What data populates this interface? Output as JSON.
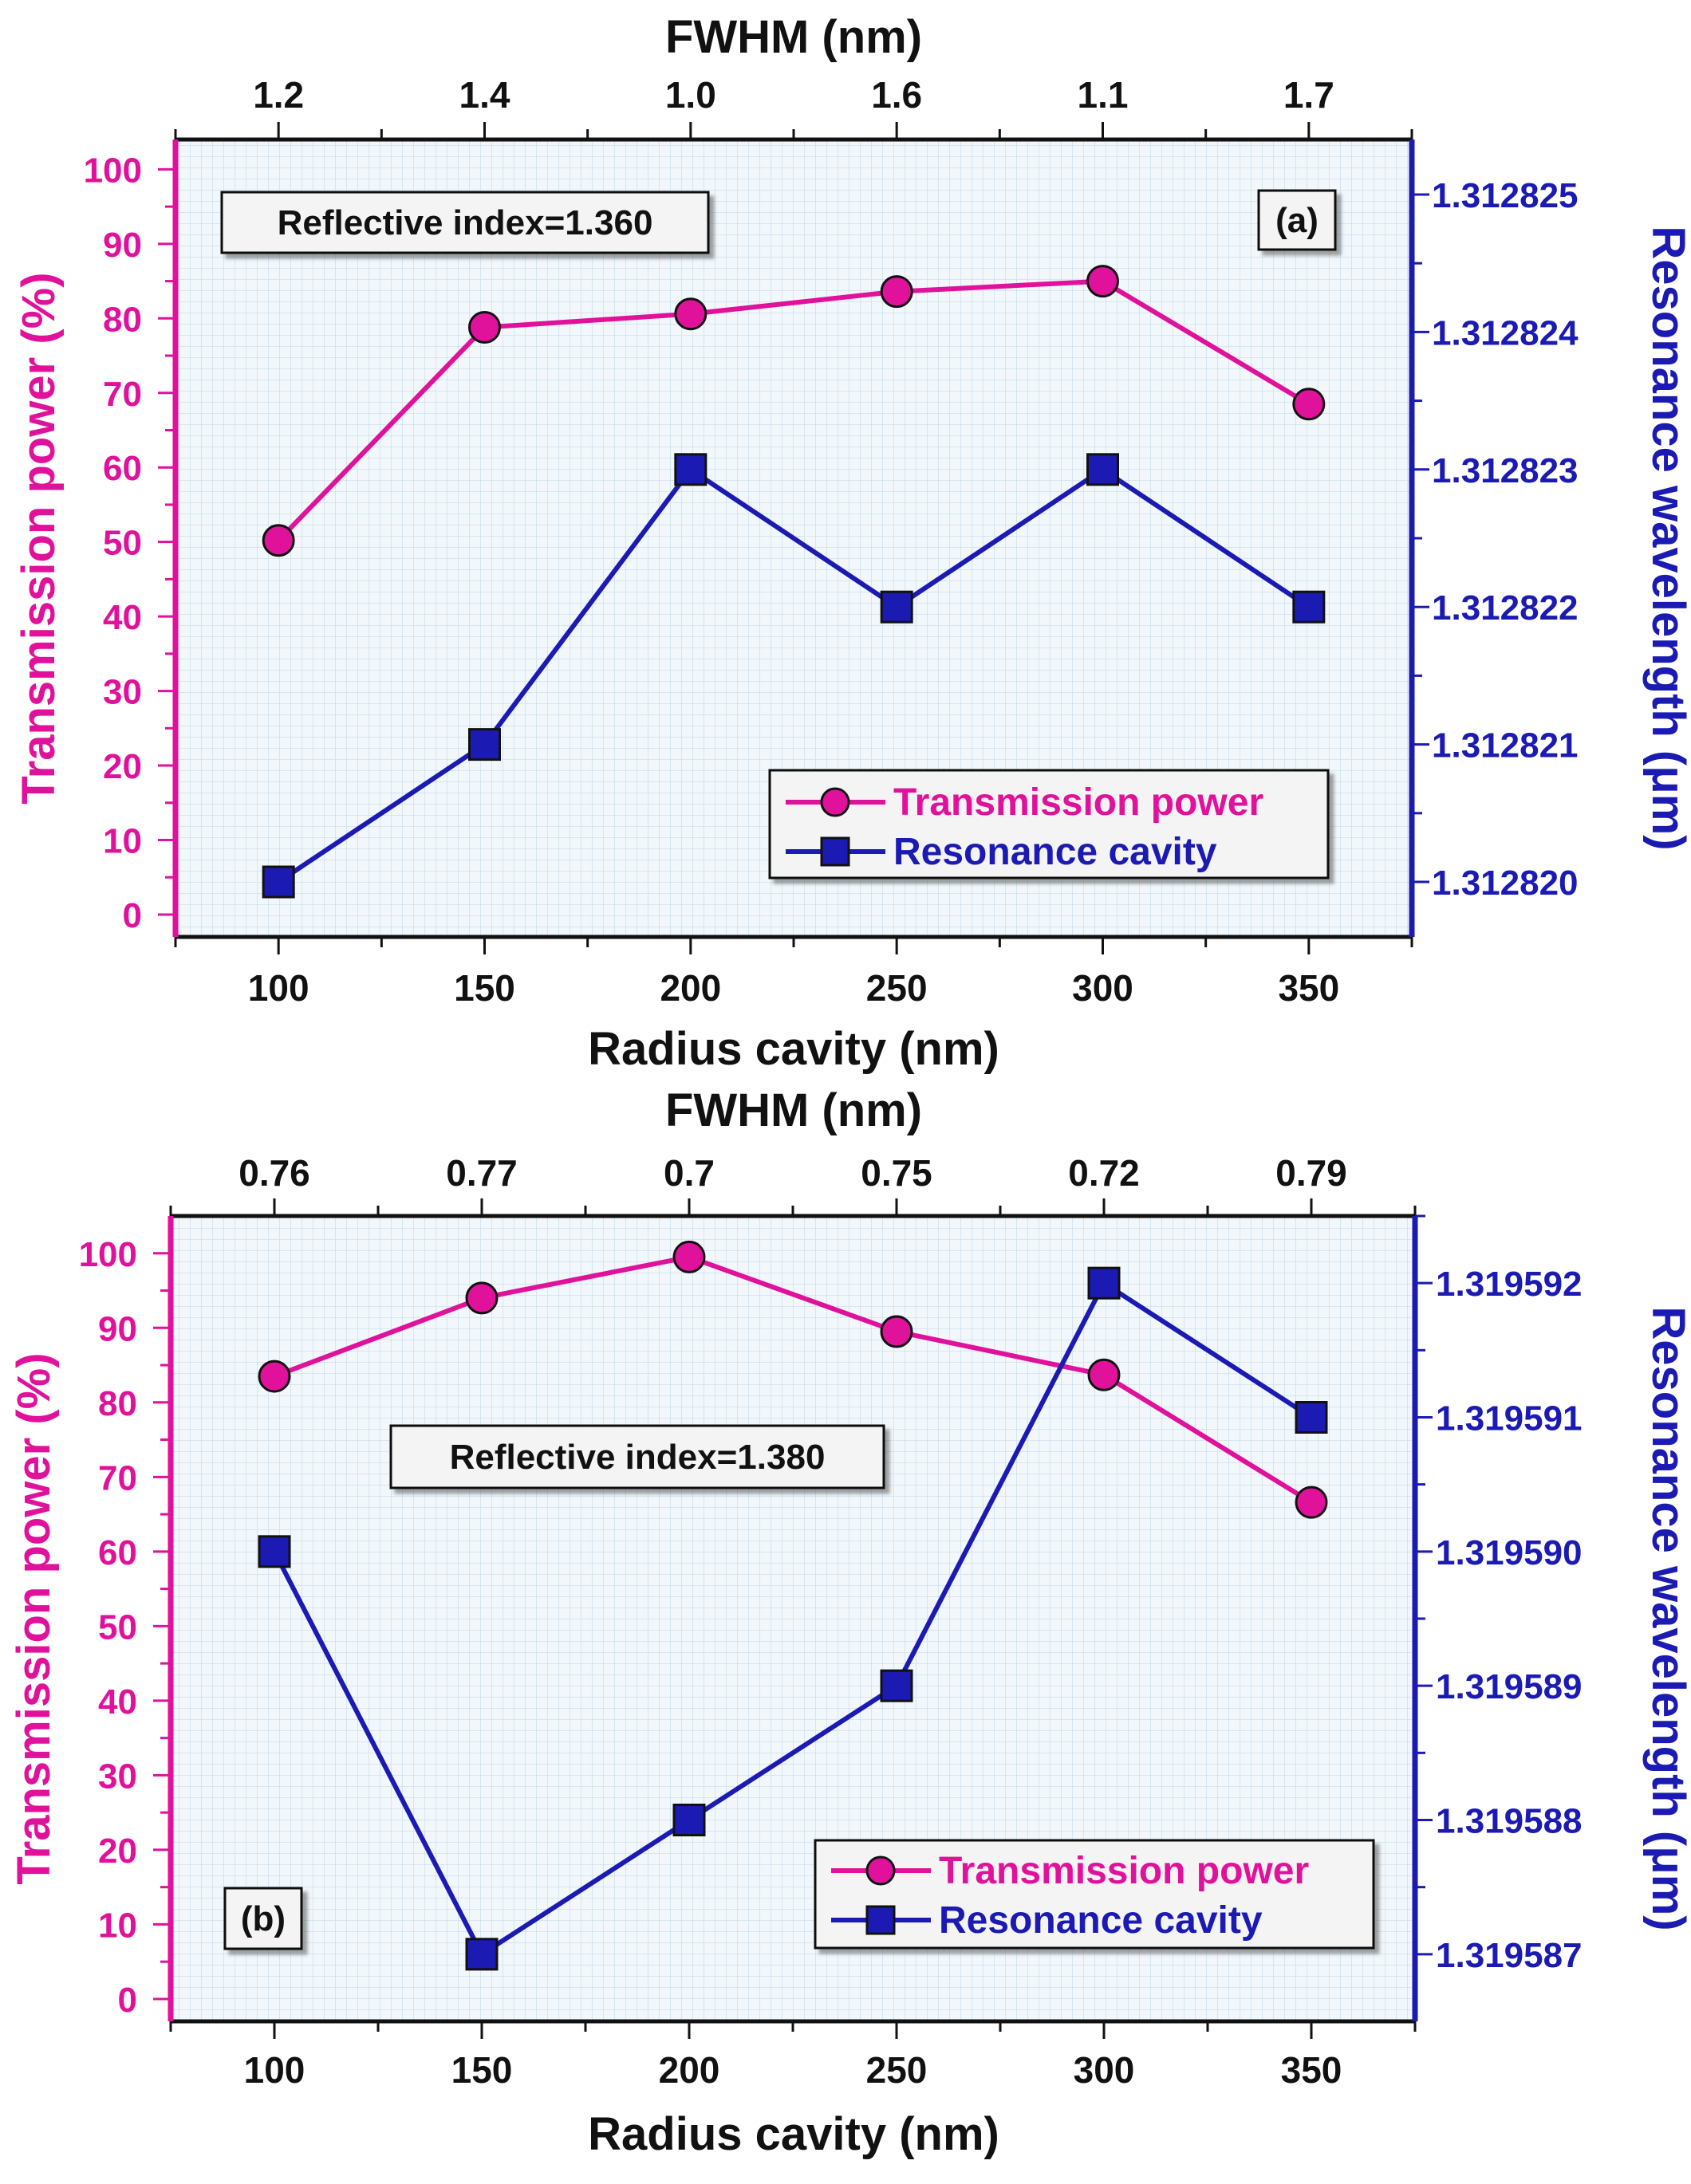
{
  "colors": {
    "transmission": "#e0119b",
    "resonance": "#1b1bb3",
    "plot_bg": "#f1f7fb",
    "grid": "#cfe1ee",
    "axis_bottom": "#111111"
  },
  "chart_data": [
    {
      "type": "line",
      "panel_label": "(a)",
      "annotation": "Reflective index=1.360",
      "xlabel": "Radius cavity (nm)",
      "top_xlabel": "FWHM (nm)",
      "ylabel_left": "Transmission power (%)",
      "ylabel_right": "Resonance wavelength (μm)",
      "xlim": [
        75,
        375
      ],
      "ylim_left": [
        -3,
        104
      ],
      "ylim_right": [
        1.3128196,
        1.3128254
      ],
      "x": [
        100,
        150,
        200,
        250,
        300,
        350
      ],
      "x_tick_labels": [
        "100",
        "150",
        "200",
        "250",
        "300",
        "350"
      ],
      "top_tick_labels": [
        "1.2",
        "1.4",
        "1.0",
        "1.6",
        "1.1",
        "1.7"
      ],
      "y_left_ticks": [
        0,
        10,
        20,
        30,
        40,
        50,
        60,
        70,
        80,
        90,
        100
      ],
      "y_left_tick_labels": [
        "0",
        "10",
        "20",
        "30",
        "40",
        "50",
        "60",
        "70",
        "80",
        "90",
        "100"
      ],
      "y_right_ticks": [
        1.31282,
        1.312821,
        1.312822,
        1.312823,
        1.312824,
        1.312825
      ],
      "y_right_tick_labels": [
        "1.312820",
        "1.312821",
        "1.312822",
        "1.312823",
        "1.312824",
        "1.312825"
      ],
      "series": [
        {
          "name": "Transmission power",
          "axis": "left",
          "marker": "circle",
          "values": [
            50.2,
            78.8,
            80.6,
            83.6,
            85.0,
            68.5
          ]
        },
        {
          "name": "Resonance cavity",
          "axis": "right",
          "marker": "square",
          "values": [
            1.31282,
            1.312821,
            1.312823,
            1.312822,
            1.312823,
            1.312822
          ]
        }
      ]
    },
    {
      "type": "line",
      "panel_label": "(b)",
      "annotation": "Reflective index=1.380",
      "xlabel": "Radius cavity (nm)",
      "top_xlabel": "FWHM (nm)",
      "ylabel_left": "Transmission power (%)",
      "ylabel_right": "Resonance wavelength (μm)",
      "xlim": [
        75,
        375
      ],
      "ylim_left": [
        -3,
        105
      ],
      "ylim_right": [
        1.3195865,
        1.3195925
      ],
      "x": [
        100,
        150,
        200,
        250,
        300,
        350
      ],
      "x_tick_labels": [
        "100",
        "150",
        "200",
        "250",
        "300",
        "350"
      ],
      "top_tick_labels": [
        "0.76",
        "0.77",
        "0.7",
        "0.75",
        "0.72",
        "0.79"
      ],
      "y_left_ticks": [
        0,
        10,
        20,
        30,
        40,
        50,
        60,
        70,
        80,
        90,
        100
      ],
      "y_left_tick_labels": [
        "0",
        "10",
        "20",
        "30",
        "40",
        "50",
        "60",
        "70",
        "80",
        "90",
        "100"
      ],
      "y_right_ticks": [
        1.319587,
        1.319588,
        1.319589,
        1.31959,
        1.319591,
        1.319592
      ],
      "y_right_tick_labels": [
        "1.319587",
        "1.319588",
        "1.319589",
        "1.319590",
        "1.319591",
        "1.319592"
      ],
      "series": [
        {
          "name": "Transmission power",
          "axis": "left",
          "marker": "circle",
          "values": [
            83.5,
            94.0,
            99.5,
            89.5,
            83.7,
            66.6
          ]
        },
        {
          "name": "Resonance cavity",
          "axis": "right",
          "marker": "square",
          "values": [
            1.31959,
            1.319587,
            1.319588,
            1.319589,
            1.319592,
            1.319591
          ]
        }
      ]
    }
  ]
}
